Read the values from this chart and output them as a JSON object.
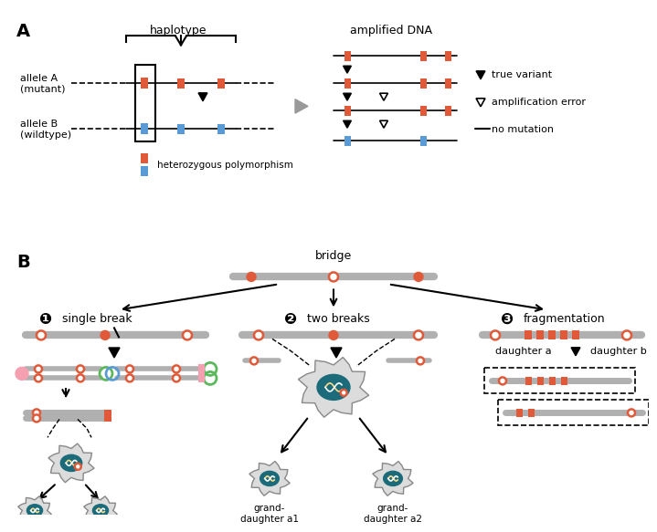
{
  "panel_A_label": "A",
  "panel_B_label": "B",
  "haplotype_label": "haplotype",
  "amplified_dna_label": "amplified DNA",
  "allele_A_label": "allele A\n(mutant)",
  "allele_B_label": "allele B\n(wildtype)",
  "hetero_label": "heterozygous polymorphism",
  "legend_true_variant": "true variant",
  "legend_amp_error": "amplification error",
  "legend_no_mutation": "no mutation",
  "bridge_label": "bridge",
  "single_break_label": "single break",
  "two_breaks_label": "two breaks",
  "fragmentation_label": "fragmentation",
  "daughter_a_label": "daughter a",
  "daughter_b_label": "daughter b",
  "granddaughter_a1": "grand-\ndaughter a1",
  "granddaughter_a2": "grand-\ndaughter a2",
  "red_color": "#E05A3A",
  "blue_color": "#5B9BD5",
  "gray_color": "#999999",
  "dark_gray": "#555555",
  "teal_color": "#1B6B7A",
  "light_gray": "#B0B0B0",
  "bg_color": "#FFFFFF",
  "pink_color": "#F4A0B0",
  "green_color": "#5CB85C",
  "cell_body": "#DCDCDC",
  "cell_border": "#888888"
}
